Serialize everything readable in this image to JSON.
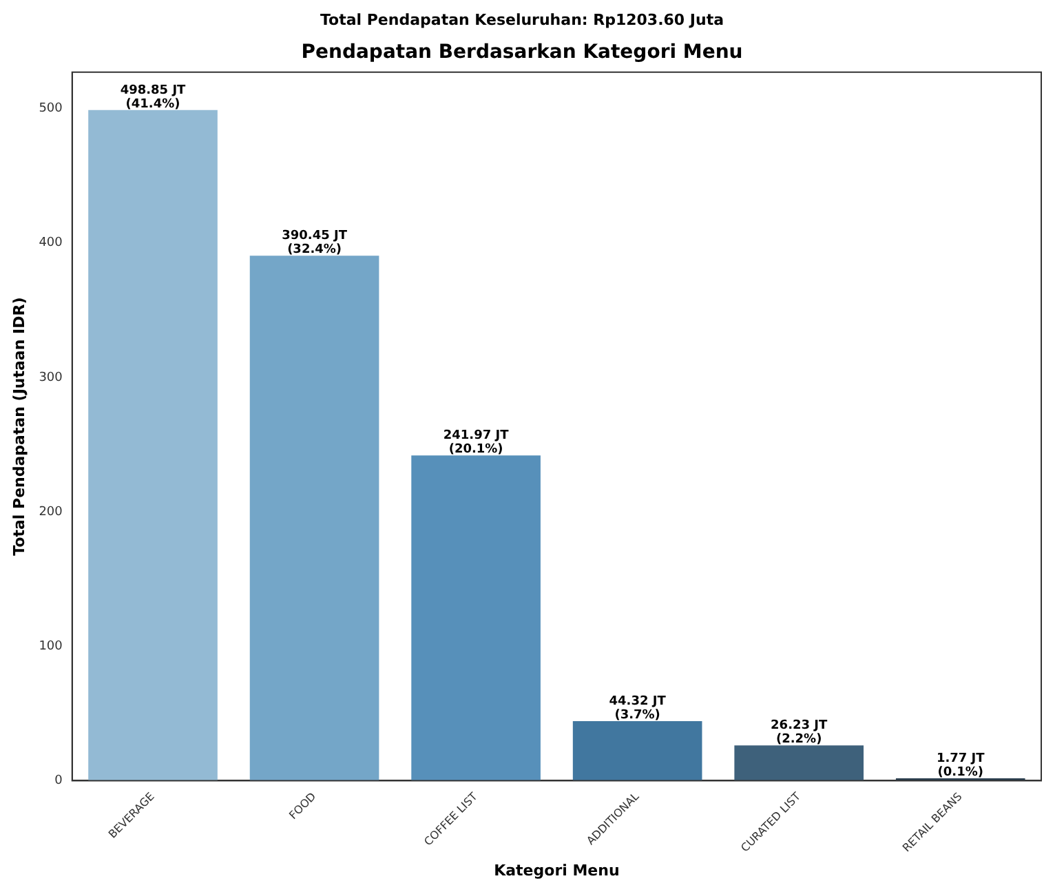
{
  "chart_data": {
    "type": "bar",
    "subtitle": "Total Pendapatan Keseluruhan: Rp1203.60 Juta",
    "title": "Pendapatan Berdasarkan Kategori Menu",
    "xlabel": "Kategori Menu",
    "ylabel": "Total Pendapatan (Jutaan IDR)",
    "categories": [
      "BEVERAGE",
      "FOOD",
      "COFFEE LIST",
      "ADDITIONAL",
      "CURATED LIST",
      "RETAIL BEANS"
    ],
    "values": [
      498.85,
      390.45,
      241.97,
      44.32,
      26.23,
      1.77
    ],
    "colors": [
      "#93bad4",
      "#74a6c8",
      "#5790ba",
      "#41779f",
      "#3e617b",
      "#2b3f4f"
    ],
    "value_labels": [
      "498.85 JT\n(41.4%)",
      "390.45 JT\n(32.4%)",
      "241.97 JT\n(20.1%)",
      "44.32 JT\n(3.7%)",
      "26.23 JT\n(2.2%)",
      "1.77 JT\n(0.1%)"
    ],
    "ylim": [
      0,
      527
    ],
    "yticks": [
      0,
      100,
      200,
      300,
      400,
      500
    ],
    "grid": false,
    "legend": false
  }
}
